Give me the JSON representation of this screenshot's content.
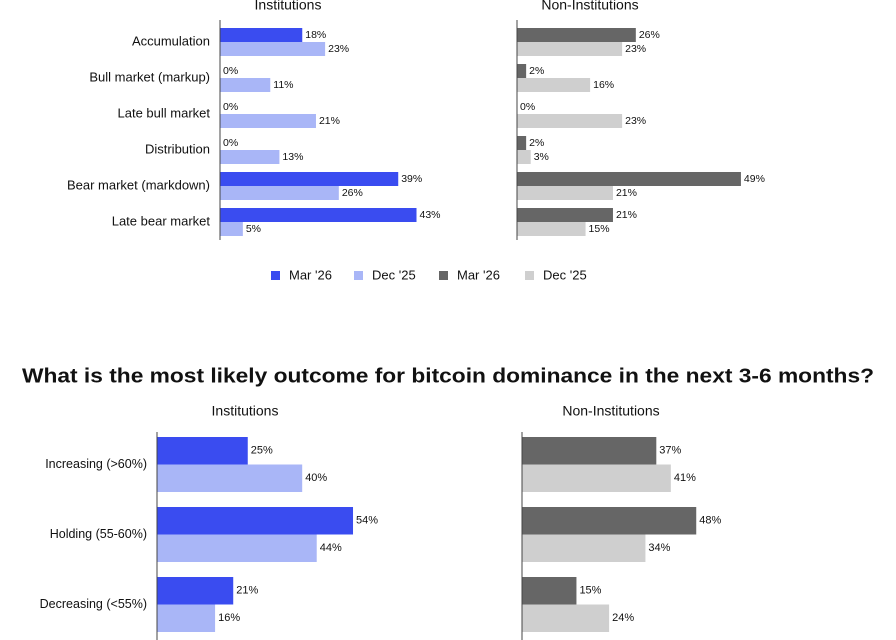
{
  "chart_data": [
    {
      "type": "bar",
      "orientation": "horizontal",
      "legend": true,
      "categories": [
        "Accumulation",
        "Bull market (markup)",
        "Late bull market",
        "Distribution",
        "Bear market (markdown)",
        "Late bear market"
      ],
      "panels": [
        {
          "title": "Institutions",
          "series": [
            {
              "name": "Mar '26",
              "color": "#3a4cf0",
              "values": [
                18,
                0,
                0,
                0,
                39,
                43
              ],
              "value_labels": [
                "18%",
                "0%",
                "0%",
                "0%",
                "39%",
                "43%"
              ]
            },
            {
              "name": "Dec '25",
              "color": "#a9b6f7",
              "values": [
                23,
                11,
                21,
                13,
                26,
                5
              ],
              "value_labels": [
                "23%",
                "11%",
                "21%",
                "13%",
                "26%",
                "5%"
              ]
            }
          ]
        },
        {
          "title": "Non-Institutions",
          "series": [
            {
              "name": "Mar '26",
              "color": "#666666",
              "values": [
                26,
                2,
                0,
                2,
                49,
                21
              ],
              "value_labels": [
                "26%",
                "2%",
                "0%",
                "2%",
                "49%",
                "21%"
              ]
            },
            {
              "name": "Dec '25",
              "color": "#cfcfcf",
              "values": [
                23,
                16,
                23,
                3,
                21,
                15
              ],
              "value_labels": [
                "23%",
                "16%",
                "23%",
                "3%",
                "21%",
                "15%"
              ]
            }
          ]
        }
      ]
    },
    {
      "type": "bar",
      "orientation": "horizontal",
      "legend": false,
      "title": "What is the most likely outcome for bitcoin dominance in the next 3-6 months?",
      "categories": [
        "Increasing (>60%)",
        "Holding (55-60%)",
        "Decreasing (<55%)"
      ],
      "panels": [
        {
          "title": "Institutions",
          "series": [
            {
              "color": "#3a4cf0",
              "values": [
                25,
                54,
                21
              ],
              "value_labels": [
                "25%",
                "54%",
                "21%"
              ]
            },
            {
              "color": "#a9b6f7",
              "values": [
                40,
                44,
                16
              ],
              "value_labels": [
                "40%",
                "44%",
                "16%"
              ]
            }
          ]
        },
        {
          "title": "Non-Institutions",
          "series": [
            {
              "color": "#666666",
              "values": [
                37,
                48,
                15
              ],
              "value_labels": [
                "37%",
                "48%",
                "15%"
              ]
            },
            {
              "color": "#cfcfcf",
              "values": [
                41,
                34,
                24
              ],
              "value_labels": [
                "41%",
                "34%",
                "24%"
              ]
            }
          ]
        }
      ]
    }
  ]
}
